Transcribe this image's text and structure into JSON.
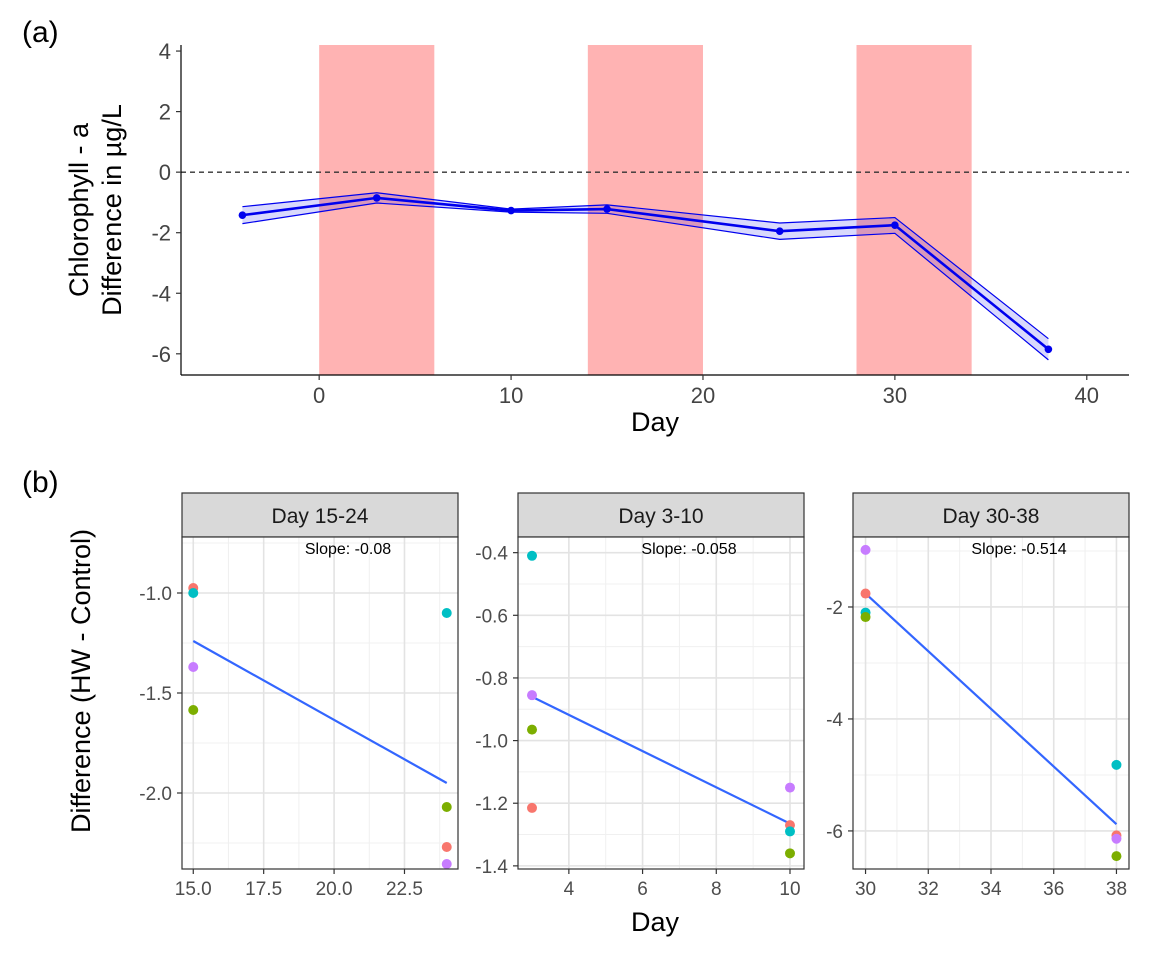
{
  "chart_data": [
    {
      "panel_label": "(a)",
      "type": "line",
      "xlabel": "Day",
      "ylabel_lines": [
        "Chlorophyll - a",
        "Difference in µg/L"
      ],
      "xlim": [
        -7.2,
        42.2
      ],
      "ylim": [
        -6.7,
        4.2
      ],
      "xticks": [
        0,
        10,
        20,
        30,
        40
      ],
      "yticks": [
        -6,
        -4,
        -2,
        0,
        2,
        4
      ],
      "reference_line_y": 0,
      "shaded_periods": [
        [
          0,
          6
        ],
        [
          14,
          20
        ],
        [
          28,
          34
        ]
      ],
      "shade_color": "#ffb3b3",
      "line_color": "#0000ee",
      "points": [
        {
          "x": -4,
          "y": -1.42,
          "lo": -1.7,
          "hi": -1.14
        },
        {
          "x": 3,
          "y": -0.85,
          "lo": -1.02,
          "hi": -0.68
        },
        {
          "x": 10,
          "y": -1.27,
          "lo": -1.32,
          "hi": -1.22
        },
        {
          "x": 15,
          "y": -1.22,
          "lo": -1.36,
          "hi": -1.08
        },
        {
          "x": 24,
          "y": -1.95,
          "lo": -2.22,
          "hi": -1.68
        },
        {
          "x": 30,
          "y": -1.75,
          "lo": -2.02,
          "hi": -1.5
        },
        {
          "x": 38,
          "y": -5.85,
          "lo": -6.2,
          "hi": -5.5
        }
      ]
    },
    {
      "panel_label": "(b)",
      "type": "scatter",
      "ylabel": "Difference (HW - Control)",
      "xlabel": "Day",
      "point_colors": [
        "#f8766d",
        "#7cae00",
        "#00bfc4",
        "#c77cff"
      ],
      "fit_color": "#3366ff",
      "facets": [
        {
          "strip": "Day 15-24",
          "annotation": "Slope: -0.08",
          "xlim": [
            14.6,
            24.4
          ],
          "ylim": [
            -2.38,
            -0.72
          ],
          "xticks": [
            15.0,
            17.5,
            20.0,
            22.5
          ],
          "xtick_labels": [
            "15.0",
            "17.5",
            "20.0",
            "22.5"
          ],
          "yticks": [
            -2.0,
            -1.5,
            -1.0
          ],
          "ytick_labels": [
            "-2.0",
            "-1.5",
            "-1.0"
          ],
          "fit": [
            [
              15,
              -1.24
            ],
            [
              24,
              -1.95
            ]
          ],
          "points": [
            {
              "x": 15,
              "y": -0.975,
              "c": 0
            },
            {
              "x": 15,
              "y": -1.0,
              "c": 2
            },
            {
              "x": 15,
              "y": -1.37,
              "c": 3
            },
            {
              "x": 15,
              "y": -1.585,
              "c": 1
            },
            {
              "x": 24,
              "y": -1.1,
              "c": 2
            },
            {
              "x": 24,
              "y": -2.07,
              "c": 1
            },
            {
              "x": 24,
              "y": -2.27,
              "c": 0
            },
            {
              "x": 24,
              "y": -2.355,
              "c": 3
            }
          ]
        },
        {
          "strip": "Day 3-10",
          "annotation": "Slope: -0.058",
          "xlim": [
            2.62,
            10.38
          ],
          "ylim": [
            -1.41,
            -0.35
          ],
          "xticks": [
            4,
            6,
            8,
            10
          ],
          "xtick_labels": [
            "4",
            "6",
            "8",
            "10"
          ],
          "yticks": [
            -1.4,
            -1.2,
            -1.0,
            -0.8,
            -0.6,
            -0.4
          ],
          "ytick_labels": [
            "-1.4",
            "-1.2",
            "-1.0",
            "-0.8",
            "-0.6",
            "-0.4"
          ],
          "fit": [
            [
              3,
              -0.86
            ],
            [
              10,
              -1.265
            ]
          ],
          "points": [
            {
              "x": 3,
              "y": -0.41,
              "c": 2
            },
            {
              "x": 3,
              "y": -0.855,
              "c": 3
            },
            {
              "x": 3,
              "y": -0.965,
              "c": 1
            },
            {
              "x": 3,
              "y": -1.215,
              "c": 0
            },
            {
              "x": 10,
              "y": -1.15,
              "c": 3
            },
            {
              "x": 10,
              "y": -1.27,
              "c": 0
            },
            {
              "x": 10,
              "y": -1.29,
              "c": 2
            },
            {
              "x": 10,
              "y": -1.36,
              "c": 1
            }
          ]
        },
        {
          "strip": "Day 30-38",
          "annotation": "Slope: -0.514",
          "xlim": [
            29.6,
            38.4
          ],
          "ylim": [
            -6.68,
            -0.75
          ],
          "xticks": [
            30,
            32,
            34,
            36,
            38
          ],
          "xtick_labels": [
            "30",
            "32",
            "34",
            "36",
            "38"
          ],
          "yticks": [
            -6,
            -4,
            -2
          ],
          "ytick_labels": [
            "-6",
            "-4",
            "-2"
          ],
          "fit": [
            [
              30,
              -1.76
            ],
            [
              38,
              -5.88
            ]
          ],
          "points": [
            {
              "x": 30,
              "y": -0.98,
              "c": 3
            },
            {
              "x": 30,
              "y": -1.76,
              "c": 0
            },
            {
              "x": 30,
              "y": -2.1,
              "c": 2
            },
            {
              "x": 30,
              "y": -2.18,
              "c": 1
            },
            {
              "x": 38,
              "y": -4.82,
              "c": 2
            },
            {
              "x": 38,
              "y": -6.08,
              "c": 0
            },
            {
              "x": 38,
              "y": -6.14,
              "c": 3
            },
            {
              "x": 38,
              "y": -6.45,
              "c": 1
            }
          ]
        }
      ]
    }
  ]
}
